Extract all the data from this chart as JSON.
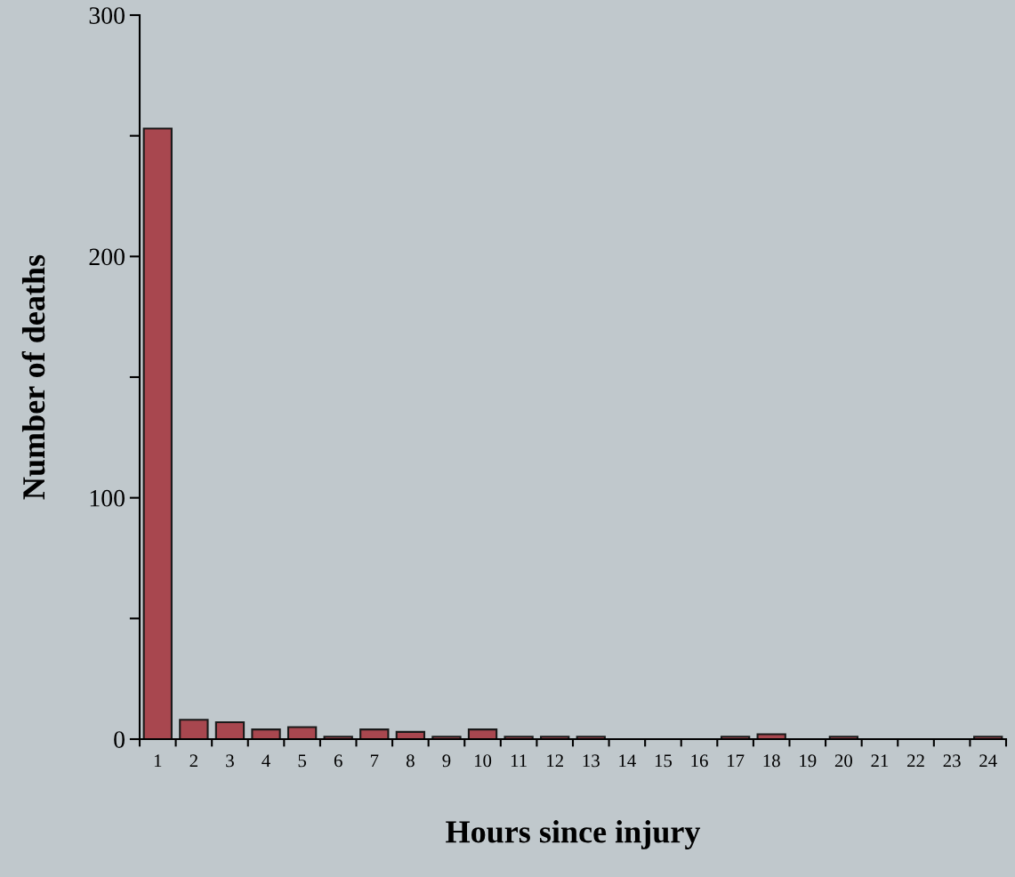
{
  "chart_data": {
    "type": "bar",
    "xlabel": "Hours since injury",
    "ylabel": "Number of deaths",
    "categories": [
      "1",
      "2",
      "3",
      "4",
      "5",
      "6",
      "7",
      "8",
      "9",
      "10",
      "11",
      "12",
      "13",
      "14",
      "15",
      "16",
      "17",
      "18",
      "19",
      "20",
      "21",
      "22",
      "23",
      "24"
    ],
    "values": [
      253,
      8,
      7,
      4,
      5,
      1,
      4,
      3,
      1,
      4,
      1,
      1,
      1,
      0,
      0,
      0,
      1,
      2,
      0,
      1,
      0,
      0,
      0,
      1
    ],
    "color": "#a8474f",
    "ylim": [
      0,
      300
    ],
    "yticks": [
      0,
      {
        "value": 50,
        "label": null
      },
      100,
      {
        "value": 150,
        "label": null
      },
      200,
      {
        "value": 250,
        "label": null
      },
      300
    ],
    "grid": false
  }
}
